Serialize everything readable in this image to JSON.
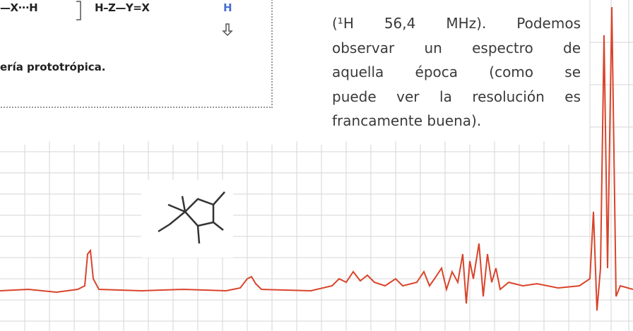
{
  "figure_box": {
    "formula": {
      "left": "—X···H",
      "middle": "H–Z—Y=X",
      "right": "H"
    },
    "caption": "ería prototrópica."
  },
  "paragraph": {
    "lines": [
      "(¹H 56,4 MHz). Podemos",
      "observar un espectro de",
      "aquella época (como se",
      "puede ver la resolución es",
      "francamente buena)."
    ]
  }
}
